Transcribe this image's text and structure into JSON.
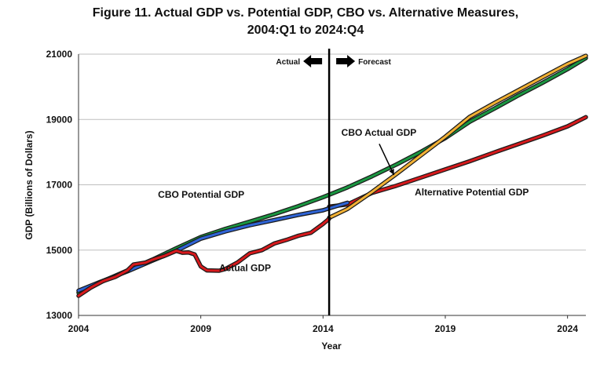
{
  "chart_data": {
    "type": "line",
    "title": "Figure 11. Actual GDP vs. Potential GDP, CBO vs. Alternative Measures,",
    "subtitle": "2004:Q1 to 2024:Q4",
    "xlabel": "Year",
    "ylabel": "GDP (Billions of Dollars)",
    "xlim": [
      2004,
      2024.75
    ],
    "ylim": [
      13000,
      21000
    ],
    "x_ticks": [
      "2004",
      "2009",
      "2014",
      "2019",
      "2024"
    ],
    "y_ticks": [
      "13000",
      "15000",
      "17000",
      "19000",
      "21000"
    ],
    "grid": "horizontal",
    "divider_x": 2014.25,
    "divider_labels": {
      "left": "Actual",
      "right": "Forecast"
    },
    "series": [
      {
        "name": "CBO Potential GDP",
        "color": "#1a9641",
        "points": [
          [
            2004,
            13700
          ],
          [
            2005,
            14050
          ],
          [
            2006,
            14380
          ],
          [
            2007,
            14700
          ],
          [
            2008,
            15060
          ],
          [
            2009,
            15400
          ],
          [
            2010,
            15650
          ],
          [
            2011,
            15870
          ],
          [
            2012,
            16100
          ],
          [
            2013,
            16350
          ],
          [
            2014,
            16620
          ],
          [
            2015,
            16920
          ],
          [
            2016,
            17260
          ],
          [
            2017,
            17620
          ],
          [
            2018,
            18010
          ],
          [
            2019,
            18430
          ],
          [
            2020,
            18930
          ],
          [
            2021,
            19330
          ],
          [
            2022,
            19740
          ],
          [
            2023,
            20130
          ],
          [
            2024,
            20540
          ],
          [
            2024.75,
            20880
          ]
        ]
      },
      {
        "name": "Alternative Potential GDP",
        "color": "#d7191c",
        "points": [
          [
            2014.25,
            16330
          ],
          [
            2015,
            16400
          ],
          [
            2016,
            16750
          ],
          [
            2017,
            16970
          ],
          [
            2018,
            17220
          ],
          [
            2019,
            17470
          ],
          [
            2020,
            17720
          ],
          [
            2021,
            17990
          ],
          [
            2022,
            18250
          ],
          [
            2023,
            18510
          ],
          [
            2024,
            18790
          ],
          [
            2024.75,
            19070
          ]
        ]
      },
      {
        "name": "CBO Actual GDP",
        "color": "#f2b134",
        "points": [
          [
            2014.25,
            15990
          ],
          [
            2015,
            16260
          ],
          [
            2016,
            16780
          ],
          [
            2017,
            17330
          ],
          [
            2018,
            17900
          ],
          [
            2019,
            18470
          ],
          [
            2020,
            19080
          ],
          [
            2021,
            19500
          ],
          [
            2022,
            19900
          ],
          [
            2023,
            20300
          ],
          [
            2024,
            20700
          ],
          [
            2024.75,
            20950
          ]
        ]
      },
      {
        "name": "Blue line (unlabeled)",
        "color": "#2f64d6",
        "points": [
          [
            2004,
            13760
          ],
          [
            2005,
            14060
          ],
          [
            2006,
            14350
          ],
          [
            2007,
            14670
          ],
          [
            2008,
            14980
          ],
          [
            2009,
            15350
          ],
          [
            2010,
            15570
          ],
          [
            2011,
            15760
          ],
          [
            2012,
            15920
          ],
          [
            2013,
            16080
          ],
          [
            2014,
            16220
          ],
          [
            2014.25,
            16280
          ],
          [
            2015,
            16450
          ]
        ]
      },
      {
        "name": "Actual GDP",
        "color": "#d7191c",
        "points": [
          [
            2004,
            13600
          ],
          [
            2004.5,
            13850
          ],
          [
            2005,
            14050
          ],
          [
            2005.5,
            14180
          ],
          [
            2006,
            14380
          ],
          [
            2006.25,
            14560
          ],
          [
            2006.75,
            14620
          ],
          [
            2007,
            14700
          ],
          [
            2007.5,
            14820
          ],
          [
            2008,
            14980
          ],
          [
            2008.25,
            14920
          ],
          [
            2008.5,
            14930
          ],
          [
            2008.75,
            14870
          ],
          [
            2009,
            14500
          ],
          [
            2009.25,
            14380
          ],
          [
            2009.75,
            14370
          ],
          [
            2010,
            14420
          ],
          [
            2010.5,
            14620
          ],
          [
            2011,
            14900
          ],
          [
            2011.5,
            15000
          ],
          [
            2012,
            15200
          ],
          [
            2012.5,
            15310
          ],
          [
            2013,
            15440
          ],
          [
            2013.5,
            15530
          ],
          [
            2014,
            15800
          ],
          [
            2014.25,
            15960
          ]
        ]
      }
    ],
    "annotations": [
      {
        "text": "CBO Potential GDP",
        "x": 2007.25,
        "y": 16600
      },
      {
        "text": "CBO Actual GDP",
        "x": 2014.75,
        "y": 18500
      },
      {
        "text": "Alternative Potential GDP",
        "x": 2017.75,
        "y": 16670
      },
      {
        "text": "Actual GDP",
        "x": 2009.75,
        "y": 14360
      }
    ],
    "arrow": {
      "from": [
        2016.3,
        18250
      ],
      "to": [
        2016.9,
        17300
      ]
    }
  }
}
